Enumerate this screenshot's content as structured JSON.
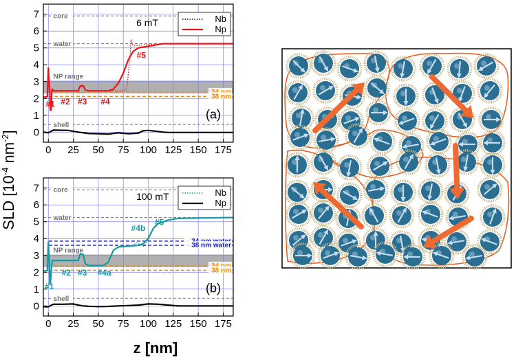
{
  "y_axis_label": "SLD [10",
  "y_axis_exp": "-4",
  "y_axis_unit": " nm",
  "y_axis_unit_exp": "-2",
  "y_axis_close": "]",
  "x_axis_label": "z [nm]",
  "colors": {
    "grid": "#8080e0",
    "reference": "#808080",
    "np_band": "#b0b0b0",
    "orange": "#f08a00",
    "red": "#e8161b",
    "teal": "#139aa0",
    "navy": "#1a22c8",
    "cluster_outline": "#e8581c",
    "arrow_big": "#ef6a30",
    "particle": "#2a6f92",
    "shell": "#c8b88a",
    "spin": "#c8dcef"
  },
  "chart_data": [
    {
      "type": "line",
      "panel": "(a)",
      "field": "6 mT",
      "xlim": [
        -5,
        185
      ],
      "ylim": [
        -0.6,
        7.6
      ],
      "xticks": [
        0,
        25,
        50,
        75,
        100,
        125,
        150,
        175
      ],
      "yticks": [
        0,
        1,
        2,
        3,
        4,
        5,
        6,
        7
      ],
      "reference_lines": [
        {
          "label": "core",
          "y": 6.9
        },
        {
          "label": "water",
          "y": 5.25
        },
        {
          "label": "shell",
          "y": 0.45
        }
      ],
      "np_range": {
        "label": "NP range",
        "y0": 2.3,
        "y1": 3.05
      },
      "layer_lines": [
        {
          "label": "34 nm",
          "y": 2.38,
          "color": "orange"
        },
        {
          "label": "38 nm",
          "y": 2.12,
          "color": "orange"
        }
      ],
      "legend": [
        "Nb",
        "Np"
      ],
      "series": [
        {
          "name": "Nb",
          "style": "dotted",
          "color": "red",
          "x": [
            -5,
            -1,
            0,
            1,
            1.5,
            2,
            2.5,
            3,
            3.5,
            4,
            5,
            30,
            32,
            35,
            37,
            40,
            75,
            78,
            79,
            80,
            82,
            82.5,
            83,
            84,
            85,
            90,
            100,
            110,
            115,
            185
          ],
          "y": [
            2.08,
            2.1,
            3.8,
            2.8,
            2.35,
            1.3,
            1.3,
            1.5,
            2.4,
            2.55,
            2.45,
            2.45,
            2.75,
            2.75,
            2.5,
            2.45,
            2.45,
            2.5,
            2.8,
            3.5,
            4.6,
            5.4,
            5.5,
            5.2,
            5.15,
            5.15,
            5.2,
            5.22,
            5.25,
            5.25
          ]
        },
        {
          "name": "Np",
          "style": "solid",
          "color": "red",
          "x": [
            -5,
            -1,
            0,
            1,
            1.5,
            2,
            2.5,
            3,
            3.5,
            4,
            5,
            30,
            32,
            35,
            37,
            40,
            60,
            65,
            70,
            75,
            80,
            85,
            90,
            100,
            110,
            115,
            185
          ],
          "y": [
            2.08,
            2.1,
            3.8,
            2.8,
            2.35,
            1.3,
            1.3,
            1.5,
            2.4,
            2.55,
            2.45,
            2.45,
            2.75,
            2.75,
            2.5,
            2.45,
            2.45,
            2.55,
            2.9,
            3.5,
            4.3,
            4.8,
            5.0,
            5.1,
            5.2,
            5.25,
            5.25
          ]
        },
        {
          "name": "magnetic",
          "style": "solid",
          "color": "black",
          "x": [
            -5,
            0,
            5,
            20,
            30,
            40,
            50,
            60,
            70,
            80,
            90,
            95,
            100,
            115,
            120,
            185
          ],
          "y": [
            0.0,
            -0.04,
            0.12,
            0.1,
            0.0,
            -0.08,
            -0.1,
            -0.12,
            -0.04,
            -0.1,
            -0.06,
            0.08,
            0.1,
            0.0,
            -0.02,
            -0.02
          ]
        }
      ],
      "labels": [
        {
          "text": "#1",
          "x": 2,
          "y": 1.5,
          "color": "red"
        },
        {
          "text": "#2",
          "x": 17,
          "y": 1.65,
          "color": "red"
        },
        {
          "text": "#3",
          "x": 34,
          "y": 1.65,
          "color": "red"
        },
        {
          "text": "#4",
          "x": 57,
          "y": 1.65,
          "color": "red"
        },
        {
          "text": "#5",
          "x": 93,
          "y": 4.4,
          "color": "red"
        }
      ]
    },
    {
      "type": "line",
      "panel": "(b)",
      "field": "100 mT",
      "xlim": [
        -5,
        185
      ],
      "ylim": [
        -0.6,
        7.6
      ],
      "xticks": [
        0,
        25,
        50,
        75,
        100,
        125,
        150,
        175
      ],
      "yticks": [
        0,
        1,
        2,
        3,
        4,
        5,
        6,
        7
      ],
      "reference_lines": [
        {
          "label": "core",
          "y": 6.9
        },
        {
          "label": "water",
          "y": 5.25
        },
        {
          "label": "shell",
          "y": 0.45
        }
      ],
      "np_range": {
        "label": "NP range",
        "y0": 2.3,
        "y1": 3.05
      },
      "layer_lines": [
        {
          "label": "34 nm water",
          "y": 3.85,
          "color": "navy"
        },
        {
          "label": "38 nm water",
          "y": 3.6,
          "color": "navy"
        },
        {
          "label": "34 nm",
          "y": 2.38,
          "color": "orange"
        },
        {
          "label": "38 nm",
          "y": 2.12,
          "color": "orange"
        }
      ],
      "legend": [
        "Nb",
        "Np"
      ],
      "series": [
        {
          "name": "Nb",
          "style": "dotted",
          "color": "teal",
          "x": [
            -5,
            -1,
            0,
            1,
            1.5,
            2,
            3,
            4,
            5,
            30,
            32,
            35,
            37,
            40,
            55,
            60,
            65,
            70,
            80,
            85,
            88,
            90,
            95,
            98,
            100,
            105,
            110,
            120,
            130,
            185
          ],
          "y": [
            2.08,
            2.1,
            3.8,
            2.6,
            1.3,
            1.3,
            2.2,
            2.7,
            2.7,
            2.7,
            3.1,
            3.05,
            2.5,
            2.4,
            2.4,
            2.6,
            3.3,
            3.5,
            3.55,
            3.6,
            3.75,
            3.7,
            3.55,
            3.7,
            4.0,
            4.6,
            4.9,
            5.1,
            5.2,
            5.25
          ]
        },
        {
          "name": "Np",
          "style": "solid",
          "color": "teal",
          "x": [
            -5,
            -1,
            0,
            1,
            1.5,
            2,
            3,
            4,
            5,
            30,
            32,
            35,
            37,
            40,
            55,
            60,
            65,
            70,
            80,
            90,
            95,
            100,
            105,
            110,
            120,
            130,
            185
          ],
          "y": [
            2.08,
            2.1,
            3.8,
            2.6,
            1.3,
            1.3,
            2.2,
            2.7,
            2.7,
            2.7,
            3.1,
            3.05,
            2.5,
            2.4,
            2.4,
            2.6,
            3.3,
            3.5,
            3.55,
            3.6,
            3.7,
            4.0,
            4.6,
            4.9,
            5.1,
            5.2,
            5.25
          ]
        },
        {
          "name": "magnetic",
          "style": "solid",
          "color": "black",
          "x": [
            -5,
            0,
            5,
            15,
            25,
            30,
            35,
            40,
            50,
            60,
            70,
            80,
            90,
            100,
            110,
            120,
            130,
            185
          ],
          "y": [
            -0.05,
            -0.05,
            0.1,
            0.1,
            0.12,
            0.05,
            0.0,
            -0.02,
            -0.04,
            -0.03,
            0.0,
            0.02,
            0.05,
            0.12,
            0.1,
            0.05,
            0.0,
            0.0
          ]
        }
      ],
      "labels": [
        {
          "text": "#1",
          "x": 1,
          "y": 1.0,
          "color": "teal"
        },
        {
          "text": "#2",
          "x": 18,
          "y": 1.8,
          "color": "teal"
        },
        {
          "text": "#3",
          "x": 34,
          "y": 1.8,
          "color": "teal"
        },
        {
          "text": "#4a",
          "x": 56,
          "y": 1.8,
          "color": "teal"
        },
        {
          "text": "#4b",
          "x": 90,
          "y": 4.45,
          "color": "teal"
        },
        {
          "text": "#5",
          "x": 111,
          "y": 4.8,
          "color": "teal"
        }
      ]
    }
  ]
}
